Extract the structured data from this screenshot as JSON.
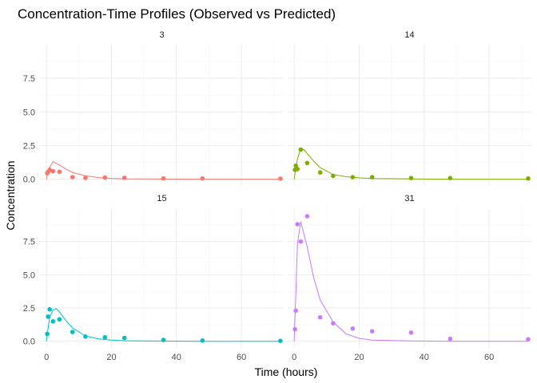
{
  "chart_data": {
    "type": "scatter",
    "title": "Concentration-Time Profiles (Observed vs Predicted)",
    "xlabel": "Time (hours)",
    "ylabel": "Concentration",
    "xlim": [
      -2,
      73
    ],
    "ylim": [
      -0.5,
      10
    ],
    "x_ticks": [
      0,
      20,
      40,
      60
    ],
    "y_ticks": [
      0.0,
      2.5,
      5.0,
      7.5
    ],
    "y_tick_labels": [
      "0.0",
      "2.5",
      "5.0",
      "7.5"
    ],
    "grid": true,
    "legend": "none",
    "panels": [
      {
        "label": "3",
        "color": "#F8766D",
        "observed": [
          [
            0.25,
            0.45
          ],
          [
            0.5,
            0.55
          ],
          [
            1,
            0.7
          ],
          [
            2,
            0.6
          ],
          [
            4,
            0.55
          ],
          [
            8,
            0.15
          ],
          [
            12,
            0.1
          ],
          [
            18,
            0.12
          ],
          [
            24,
            0.1
          ],
          [
            36,
            0.05
          ],
          [
            48,
            0.05
          ],
          [
            72,
            0.04
          ]
        ],
        "predicted": [
          [
            0,
            0
          ],
          [
            0.5,
            0.5
          ],
          [
            1,
            0.9
          ],
          [
            2,
            1.3
          ],
          [
            4,
            1.05
          ],
          [
            6,
            0.75
          ],
          [
            8,
            0.5
          ],
          [
            12,
            0.25
          ],
          [
            16,
            0.12
          ],
          [
            20,
            0.06
          ],
          [
            24,
            0.03
          ],
          [
            36,
            0.01
          ],
          [
            48,
            0
          ],
          [
            72,
            0
          ]
        ]
      },
      {
        "label": "14",
        "color": "#7CAE00",
        "observed": [
          [
            0.25,
            0.7
          ],
          [
            0.5,
            1.0
          ],
          [
            1,
            0.75
          ],
          [
            2,
            2.2
          ],
          [
            4,
            1.2
          ],
          [
            8,
            0.5
          ],
          [
            12,
            0.25
          ],
          [
            18,
            0.15
          ],
          [
            24,
            0.15
          ],
          [
            36,
            0.08
          ],
          [
            48,
            0.08
          ],
          [
            72,
            0.05
          ]
        ],
        "predicted": [
          [
            0,
            0
          ],
          [
            0.5,
            0.8
          ],
          [
            1,
            1.5
          ],
          [
            2,
            2.25
          ],
          [
            3,
            2.2
          ],
          [
            4,
            1.9
          ],
          [
            6,
            1.35
          ],
          [
            8,
            0.85
          ],
          [
            12,
            0.35
          ],
          [
            16,
            0.18
          ],
          [
            20,
            0.1
          ],
          [
            24,
            0.05
          ],
          [
            36,
            0.02
          ],
          [
            48,
            0
          ],
          [
            72,
            0
          ]
        ]
      },
      {
        "label": "15",
        "color": "#00BFC4",
        "observed": [
          [
            0.25,
            0.55
          ],
          [
            0.5,
            1.85
          ],
          [
            1,
            2.4
          ],
          [
            2,
            1.5
          ],
          [
            4,
            1.65
          ],
          [
            8,
            0.7
          ],
          [
            12,
            0.35
          ],
          [
            18,
            0.3
          ],
          [
            24,
            0.25
          ],
          [
            36,
            0.1
          ],
          [
            48,
            0.05
          ],
          [
            72,
            0.03
          ]
        ],
        "predicted": [
          [
            0,
            0
          ],
          [
            0.5,
            1.0
          ],
          [
            1,
            1.8
          ],
          [
            2,
            2.35
          ],
          [
            3,
            2.45
          ],
          [
            4,
            2.2
          ],
          [
            6,
            1.55
          ],
          [
            8,
            1.0
          ],
          [
            12,
            0.4
          ],
          [
            16,
            0.18
          ],
          [
            20,
            0.08
          ],
          [
            24,
            0.04
          ],
          [
            36,
            0.01
          ],
          [
            48,
            0
          ],
          [
            72,
            0
          ]
        ]
      },
      {
        "label": "31",
        "color": "#C77CFF",
        "observed": [
          [
            0.25,
            0.9
          ],
          [
            0.5,
            2.3
          ],
          [
            1,
            8.8
          ],
          [
            2,
            7.5
          ],
          [
            4,
            9.4
          ],
          [
            8,
            1.8
          ],
          [
            12,
            1.35
          ],
          [
            18,
            0.95
          ],
          [
            24,
            0.75
          ],
          [
            36,
            0.65
          ],
          [
            48,
            0.18
          ],
          [
            72,
            0.15
          ]
        ],
        "predicted": [
          [
            0,
            0
          ],
          [
            0.5,
            3.5
          ],
          [
            1,
            7.3
          ],
          [
            2,
            9.0
          ],
          [
            4,
            7.1
          ],
          [
            6,
            4.8
          ],
          [
            8,
            3.1
          ],
          [
            12,
            1.45
          ],
          [
            16,
            0.55
          ],
          [
            20,
            0.22
          ],
          [
            24,
            0.09
          ],
          [
            36,
            0.02
          ],
          [
            48,
            0
          ],
          [
            72,
            0
          ]
        ]
      }
    ]
  }
}
